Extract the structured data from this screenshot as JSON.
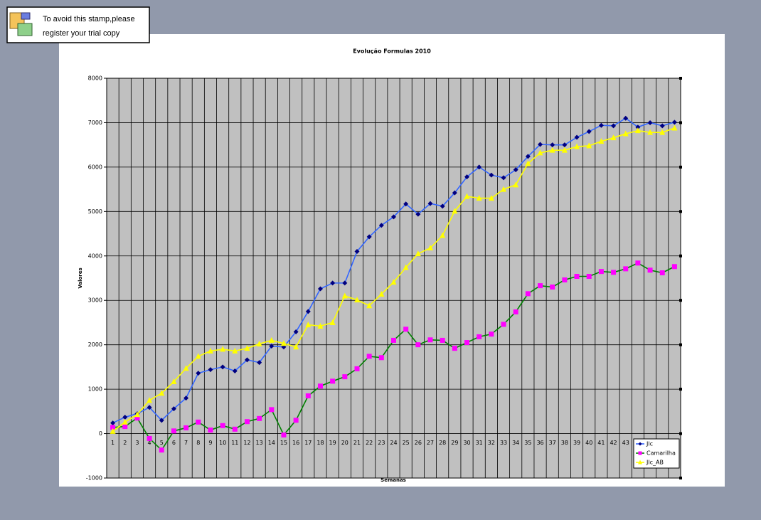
{
  "stamp": {
    "lines": [
      "To avoid this stamp,please",
      "register your trial copy"
    ]
  },
  "chart_data": {
    "type": "line",
    "title": "Evolução Formulas 2010",
    "x_label": "Semanas",
    "y_label": "Valores",
    "categories": [
      "1",
      "2",
      "3",
      "4",
      "5",
      "6",
      "7",
      "8",
      "9",
      "10",
      "11",
      "12",
      "13",
      "14",
      "15",
      "16",
      "17",
      "18",
      "19",
      "20",
      "21",
      "22",
      "23",
      "24",
      "25",
      "26",
      "27",
      "28",
      "29",
      "30",
      "31",
      "32",
      "33",
      "34",
      "35",
      "36",
      "37",
      "38",
      "39",
      "40",
      "41",
      "42",
      "43",
      null,
      null,
      null,
      null
    ],
    "ylim": [
      -1000,
      8000
    ],
    "yticks": [
      -1000,
      0,
      1000,
      2000,
      3000,
      4000,
      5000,
      6000,
      7000,
      8000
    ],
    "grid": true,
    "legend": "lower right",
    "series": [
      {
        "name": "Jlc",
        "color": "#3366ff",
        "marker_color": "#000080",
        "marker": "diamond",
        "values": [
          240,
          370,
          450,
          590,
          300,
          560,
          800,
          1360,
          1440,
          1500,
          1410,
          1660,
          1600,
          1970,
          1950,
          2290,
          2750,
          3260,
          3390,
          3390,
          4100,
          4430,
          4690,
          4880,
          5170,
          4940,
          5180,
          5120,
          5420,
          5780,
          6000,
          5820,
          5760,
          5940,
          6240,
          6510,
          6500,
          6500,
          6670,
          6800,
          6940,
          6930,
          7100,
          6900,
          7000,
          6930,
          7010
        ]
      },
      {
        "name": "Camarilha",
        "color": "#008000",
        "marker_color": "#ff00ff",
        "marker": "square",
        "values": [
          140,
          160,
          350,
          -110,
          -370,
          60,
          130,
          260,
          80,
          180,
          100,
          270,
          340,
          540,
          -30,
          300,
          850,
          1070,
          1180,
          1280,
          1460,
          1740,
          1710,
          2100,
          2350,
          2000,
          2110,
          2100,
          1920,
          2050,
          2180,
          2240,
          2460,
          2740,
          3150,
          3330,
          3300,
          3460,
          3540,
          3540,
          3650,
          3630,
          3710,
          3840,
          3680,
          3620,
          3760
        ]
      },
      {
        "name": "Jlc_AB",
        "color": "#ffff00",
        "marker_color": "#ffff00",
        "marker": "triangle",
        "values": [
          50,
          260,
          430,
          750,
          910,
          1170,
          1470,
          1740,
          1860,
          1900,
          1860,
          1920,
          2020,
          2100,
          2030,
          1950,
          2450,
          2420,
          2500,
          3100,
          3010,
          2880,
          3140,
          3410,
          3740,
          4050,
          4180,
          4460,
          5010,
          5340,
          5300,
          5300,
          5500,
          5600,
          6080,
          6320,
          6380,
          6380,
          6460,
          6480,
          6580,
          6660,
          6750,
          6820,
          6780,
          6780,
          6880
        ]
      }
    ]
  }
}
